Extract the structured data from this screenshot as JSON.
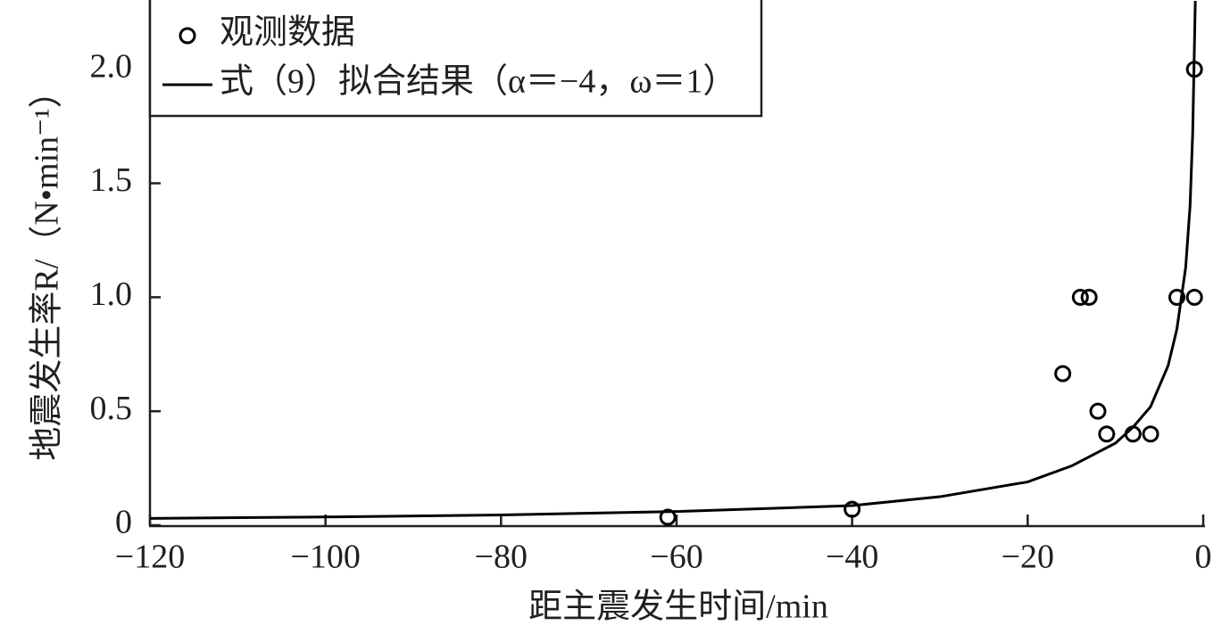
{
  "chart_data": {
    "type": "scatter",
    "xlabel": "距主震发生时间/min",
    "ylabel": "地震发生率R/（N•min⁻¹）",
    "xlim": [
      -120,
      0
    ],
    "ylim": [
      0,
      2.3
    ],
    "xticks": [
      {
        "value": -120,
        "label": "−120"
      },
      {
        "value": -100,
        "label": "−100"
      },
      {
        "value": -80,
        "label": "−80"
      },
      {
        "value": -60,
        "label": "−60"
      },
      {
        "value": -40,
        "label": "−40"
      },
      {
        "value": -20,
        "label": "−20"
      },
      0
    ],
    "yticks": [
      0,
      0.5,
      {
        "value": 1,
        "label": "1.0"
      },
      1.5,
      {
        "value": 2,
        "label": "2.0"
      }
    ],
    "legend": "upper left",
    "grid": false,
    "series": [
      {
        "name": "观测数据",
        "type": "scatter",
        "color": "#000000",
        "x": [
          -61,
          -40,
          -16,
          -14,
          -13,
          -12,
          -11,
          -8,
          -6,
          -3,
          -1,
          -1
        ],
        "values": [
          0.035,
          0.07,
          0.665,
          1,
          1,
          0.5,
          0.4,
          0.4,
          0.4,
          1,
          1,
          2
        ]
      },
      {
        "name": "式（9）拟合结果（α＝−4，ω＝1）",
        "type": "line",
        "color": "#000000",
        "x": [
          -120,
          -100,
          -80,
          -60,
          -40,
          -30,
          -20,
          -15,
          -10,
          -8,
          -6,
          -4,
          -3,
          -2,
          -1.5,
          -1.2,
          -0.9
        ],
        "values": [
          0.03,
          0.036,
          0.045,
          0.06,
          0.086,
          0.125,
          0.19,
          0.26,
          0.36,
          0.43,
          0.52,
          0.7,
          0.86,
          1.13,
          1.4,
          1.72,
          2.3
        ]
      }
    ]
  }
}
